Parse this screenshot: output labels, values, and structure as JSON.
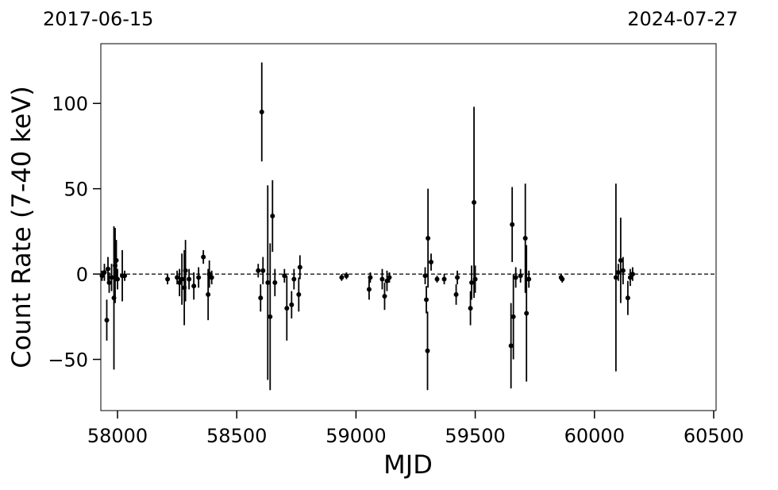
{
  "chart_data": {
    "type": "errorbar-scatter",
    "xlabel": "MJD",
    "ylabel": "Count Rate (7-40 keV)",
    "xlim": [
      57930,
      60510
    ],
    "ylim": [
      -80,
      135
    ],
    "xticks": [
      58000,
      58500,
      59000,
      59500,
      60000,
      60500
    ],
    "yticks": [
      {
        "value": -50,
        "label": "−50"
      },
      0,
      50,
      100
    ],
    "x2ticks": [
      {
        "value": 57919,
        "label": "2017-06-15"
      },
      {
        "value": 60518,
        "label": "2024-07-27"
      }
    ],
    "hline": 0,
    "color": "#000000",
    "grid": false,
    "series": [
      {
        "name": "Count Rate",
        "color": "#000000",
        "x": [
          57935,
          57945,
          57955,
          57960,
          57965,
          57975,
          57985,
          57990,
          57995,
          58000,
          58020,
          58030,
          58210,
          58250,
          58260,
          58270,
          58280,
          58285,
          58300,
          58320,
          58340,
          58360,
          58380,
          58385,
          58395,
          58590,
          58600,
          58605,
          58610,
          58630,
          58640,
          58650,
          58660,
          58700,
          58710,
          58730,
          58740,
          58760,
          58765,
          58940,
          58960,
          59055,
          59060,
          59110,
          59120,
          59130,
          59140,
          59290,
          59295,
          59300,
          59302,
          59315,
          59340,
          59370,
          59420,
          59425,
          59480,
          59485,
          59495,
          59500,
          59650,
          59655,
          59660,
          59670,
          59690,
          59710,
          59715,
          59725,
          59860,
          59865,
          60090,
          60100,
          60110,
          60120,
          60140,
          60150,
          60160
        ],
        "y": [
          -1,
          1,
          -27,
          3,
          -5,
          -2,
          -14,
          5,
          8,
          -3,
          -1,
          -1,
          -3,
          -2,
          -5,
          -3,
          -8,
          2,
          -3,
          -7,
          -2,
          10,
          -12,
          0,
          -2,
          2,
          -14,
          95,
          2,
          -5,
          -25,
          34,
          -5,
          -1,
          -20,
          -18,
          -3,
          -12,
          4,
          -2,
          -1,
          -9,
          -2,
          -3,
          -13,
          -4,
          -2,
          -1,
          -15,
          -45,
          21,
          7,
          -3,
          -3,
          -12,
          -2,
          -20,
          -5,
          42,
          -3,
          -42,
          29,
          -25,
          -2,
          -1,
          21,
          -23,
          -3,
          -2,
          -3,
          -2,
          1,
          8,
          2,
          -14,
          -2,
          0
        ],
        "yerr": [
          3,
          5,
          12,
          7,
          6,
          8,
          42,
          22,
          12,
          6,
          15,
          3,
          3,
          4,
          8,
          15,
          22,
          18,
          6,
          8,
          6,
          4,
          15,
          8,
          4,
          4,
          8,
          29,
          8,
          57,
          43,
          21,
          8,
          4,
          19,
          8,
          6,
          10,
          7,
          2,
          2,
          6,
          3,
          6,
          8,
          6,
          3,
          5,
          8,
          23,
          29,
          5,
          2,
          3,
          6,
          4,
          10,
          10,
          56,
          8,
          25,
          22,
          25,
          6,
          4,
          32,
          40,
          5,
          2,
          2,
          55,
          5,
          25,
          8,
          10,
          5,
          4
        ]
      }
    ]
  }
}
